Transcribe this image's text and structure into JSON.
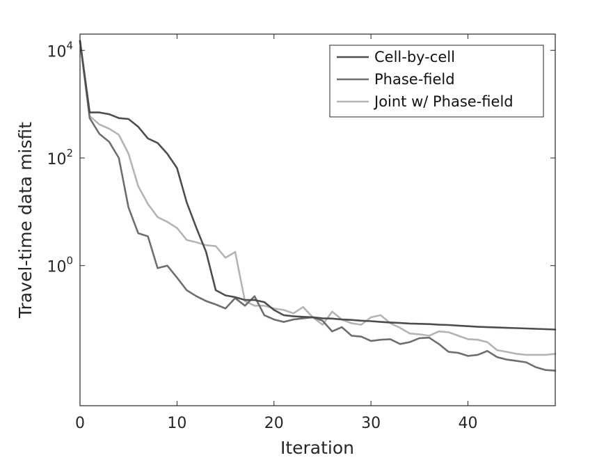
{
  "chart_data": {
    "type": "line",
    "xlabel": "Iteration",
    "ylabel": "Travel-time data misfit",
    "xlim": [
      0,
      49
    ],
    "ylim": [
      0.0025,
      20000
    ],
    "yscale": "log",
    "xticks": [
      0,
      10,
      20,
      30,
      40
    ],
    "xtick_labels": [
      "0",
      "10",
      "20",
      "30",
      "40"
    ],
    "yticks": [
      {
        "value": 1,
        "base": "10",
        "exp": "0"
      },
      {
        "value": 100,
        "base": "10",
        "exp": "2"
      },
      {
        "value": 10000,
        "base": "10",
        "exp": "4"
      }
    ],
    "grid": false,
    "legend_position": "top-right",
    "series": [
      {
        "name": "Cell-by-cell",
        "color": "#4d4d4d",
        "x": [
          0,
          1,
          2,
          3,
          4,
          5,
          6,
          7,
          8,
          9,
          10,
          11,
          12,
          13,
          14,
          15,
          16,
          17,
          18,
          19,
          20,
          21,
          22,
          23,
          24,
          25,
          26,
          27,
          28,
          29,
          30,
          31,
          32,
          33,
          34,
          35,
          36,
          37,
          38,
          39,
          40,
          41,
          42,
          43,
          44,
          45,
          46,
          47,
          48,
          49
        ],
        "y": [
          15000,
          700,
          700,
          650,
          550,
          530,
          380,
          230,
          190,
          120,
          65,
          15,
          5,
          1.8,
          0.35,
          0.28,
          0.26,
          0.23,
          0.23,
          0.21,
          0.15,
          0.12,
          0.115,
          0.112,
          0.11,
          0.105,
          0.104,
          0.1,
          0.098,
          0.095,
          0.093,
          0.09,
          0.088,
          0.086,
          0.084,
          0.083,
          0.082,
          0.08,
          0.079,
          0.077,
          0.075,
          0.073,
          0.072,
          0.071,
          0.07,
          0.069,
          0.068,
          0.067,
          0.066,
          0.065
        ]
      },
      {
        "name": "Phase-field",
        "color": "#6e6e6e",
        "x": [
          0,
          1,
          2,
          3,
          4,
          5,
          6,
          7,
          8,
          9,
          10,
          11,
          12,
          13,
          14,
          15,
          16,
          17,
          18,
          19,
          20,
          21,
          22,
          23,
          24,
          25,
          26,
          27,
          28,
          29,
          30,
          31,
          32,
          33,
          34,
          35,
          36,
          37,
          38,
          39,
          40,
          41,
          42,
          43,
          44,
          45,
          46,
          47,
          48,
          49
        ],
        "y": [
          15000,
          550,
          280,
          200,
          100,
          12,
          4,
          3.5,
          0.9,
          1,
          0.6,
          0.35,
          0.27,
          0.22,
          0.19,
          0.16,
          0.25,
          0.18,
          0.27,
          0.12,
          0.1,
          0.09,
          0.1,
          0.105,
          0.11,
          0.095,
          0.06,
          0.072,
          0.05,
          0.048,
          0.04,
          0.042,
          0.043,
          0.035,
          0.038,
          0.045,
          0.046,
          0.035,
          0.025,
          0.024,
          0.021,
          0.022,
          0.026,
          0.02,
          0.018,
          0.017,
          0.016,
          0.013,
          0.0115,
          0.0112
        ]
      },
      {
        "name": "Joint w/ Phase-field",
        "color": "#b4b4b4",
        "x": [
          0,
          1,
          2,
          3,
          4,
          5,
          6,
          7,
          8,
          9,
          10,
          11,
          12,
          13,
          14,
          15,
          16,
          17,
          18,
          19,
          20,
          21,
          22,
          23,
          24,
          25,
          26,
          27,
          28,
          29,
          30,
          31,
          32,
          33,
          34,
          35,
          36,
          37,
          38,
          39,
          40,
          41,
          42,
          43,
          44,
          45,
          46,
          47,
          48,
          49
        ],
        "y": [
          15000,
          600,
          420,
          350,
          270,
          120,
          30,
          14,
          8,
          6.5,
          5,
          3,
          2.7,
          2.4,
          2.3,
          1.4,
          1.8,
          0.22,
          0.18,
          0.18,
          0.16,
          0.15,
          0.13,
          0.17,
          0.11,
          0.08,
          0.14,
          0.1,
          0.085,
          0.08,
          0.11,
          0.12,
          0.085,
          0.07,
          0.055,
          0.053,
          0.05,
          0.06,
          0.058,
          0.05,
          0.043,
          0.042,
          0.038,
          0.027,
          0.025,
          0.023,
          0.022,
          0.022,
          0.022,
          0.023
        ]
      }
    ]
  }
}
